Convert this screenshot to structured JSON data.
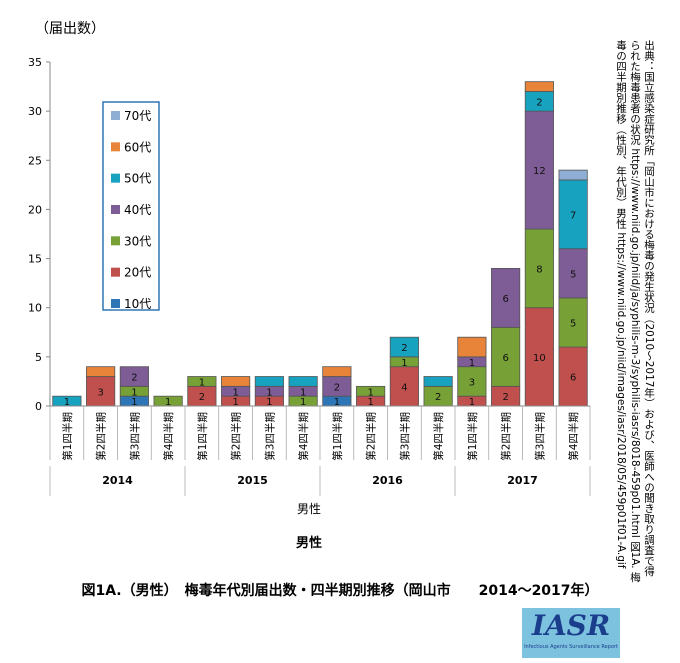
{
  "y_unit_label": "（届出数）",
  "source_text": "出典：国立感染症研究所「岡山市における梅毒の発生状況（2010〜2017年）および、医師への聞き取り調査で得られた梅毒患者の状況 https://www.niid.go.jp/niid/ja/syphilis-m-3/syphilis-iasrs/8018-459p01.html 図1A. 梅毒の四半期別推移（性別、年代別）男性 https://www.niid.go.jp/niid/images/iasr/2018/05/459p01f01-A.gif",
  "caption": "図1A.（男性）　梅毒年代別届出数・四半期別推移（岡山市　　2014〜2017年）",
  "logo_text": "IASR",
  "logo_subtext": "Infectious Agents Surveillance Report",
  "chart_data": {
    "type": "bar",
    "stacked": true,
    "ylim": [
      0,
      35
    ],
    "yticks": [
      0,
      5,
      10,
      15,
      20,
      25,
      30,
      35
    ],
    "grid": false,
    "legend_position": "top-left",
    "categories": [
      "第1四半期",
      "第2四半期",
      "第3四半期",
      "第4四半期",
      "第1四半期",
      "第2四半期",
      "第3四半期",
      "第4四半期",
      "第1四半期",
      "第2四半期",
      "第3四半期",
      "第4四半期",
      "第1四半期",
      "第2四半期",
      "第3四半期",
      "第4四半期"
    ],
    "groups": [
      {
        "label": "2014",
        "count": 4
      },
      {
        "label": "2015",
        "count": 4
      },
      {
        "label": "2016",
        "count": 4
      },
      {
        "label": "2017",
        "count": 4
      }
    ],
    "xlabel": "男性",
    "xlabel_bold": "男性",
    "series": [
      {
        "name": "10代",
        "color": "#2e75b6",
        "values": [
          0,
          0,
          1,
          0,
          0,
          0,
          0,
          0,
          1,
          0,
          0,
          0,
          0,
          0,
          0,
          0
        ],
        "show_labels": [
          0,
          0,
          1,
          0,
          0,
          0,
          0,
          0,
          1,
          0,
          0,
          0,
          0,
          0,
          0,
          0
        ]
      },
      {
        "name": "20代",
        "color": "#c0504d",
        "values": [
          0,
          3,
          0,
          0,
          2,
          1,
          1,
          0,
          0,
          1,
          4,
          0,
          1,
          2,
          10,
          6
        ],
        "show_labels": [
          0,
          1,
          0,
          0,
          1,
          1,
          1,
          0,
          0,
          1,
          1,
          0,
          1,
          1,
          1,
          1
        ]
      },
      {
        "name": "30代",
        "color": "#77a036",
        "values": [
          0,
          0,
          1,
          1,
          1,
          0,
          0,
          1,
          0,
          1,
          1,
          2,
          3,
          6,
          8,
          5
        ],
        "show_labels": [
          0,
          0,
          1,
          1,
          1,
          0,
          0,
          1,
          0,
          1,
          1,
          1,
          1,
          1,
          1,
          1
        ]
      },
      {
        "name": "40代",
        "color": "#7e5c95",
        "values": [
          0,
          0,
          2,
          0,
          0,
          1,
          1,
          1,
          2,
          0,
          0,
          0,
          1,
          6,
          12,
          5
        ],
        "show_labels": [
          0,
          0,
          1,
          0,
          0,
          1,
          1,
          1,
          1,
          0,
          0,
          0,
          1,
          1,
          1,
          1
        ]
      },
      {
        "name": "50代",
        "color": "#17a2c0",
        "values": [
          1,
          0,
          0,
          0,
          0,
          0,
          1,
          1,
          0,
          0,
          2,
          1,
          0,
          0,
          2,
          7
        ],
        "show_labels": [
          1,
          0,
          0,
          0,
          0,
          0,
          0,
          0,
          0,
          0,
          1,
          0,
          0,
          0,
          1,
          1
        ]
      },
      {
        "name": "60代",
        "color": "#e8833a",
        "values": [
          0,
          1,
          0,
          0,
          0,
          1,
          0,
          0,
          1,
          0,
          0,
          0,
          2,
          0,
          1,
          0
        ],
        "show_labels": [
          0,
          0,
          0,
          0,
          0,
          0,
          0,
          0,
          0,
          0,
          0,
          0,
          0,
          0,
          0,
          0
        ]
      },
      {
        "name": "70代",
        "color": "#8eaed3",
        "values": [
          0,
          0,
          0,
          0,
          0,
          0,
          0,
          0,
          0,
          0,
          0,
          0,
          0,
          0,
          0,
          1
        ],
        "show_labels": [
          0,
          0,
          0,
          0,
          0,
          0,
          0,
          0,
          0,
          0,
          0,
          0,
          0,
          0,
          0,
          0
        ]
      }
    ]
  }
}
